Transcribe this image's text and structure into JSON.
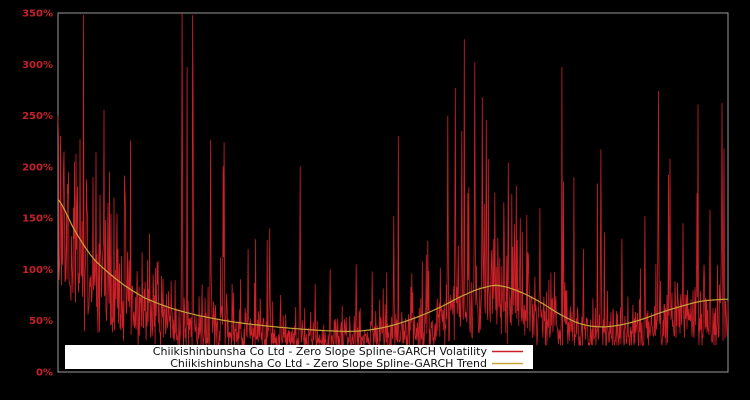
{
  "window": {
    "background": "#000000"
  },
  "chart_data": {
    "type": "line",
    "title": "",
    "grid": false,
    "background": "#000000",
    "frame_color": "#9a9a9a",
    "x_axis": {
      "label": "",
      "ticks": []
    },
    "y_axis": {
      "label": "",
      "unit": "%",
      "min": 0,
      "max": 350,
      "color": "#c6212a",
      "ticks": [
        {
          "label": "0%",
          "value": 0
        },
        {
          "label": "50%",
          "value": 50
        },
        {
          "label": "100%",
          "value": 100
        },
        {
          "label": "150%",
          "value": 150
        },
        {
          "label": "200%",
          "value": 200
        },
        {
          "label": "250%",
          "value": 250
        },
        {
          "label": "300%",
          "value": 300
        },
        {
          "label": "350%",
          "value": 350
        }
      ]
    },
    "legend": {
      "position": "bottom-center",
      "background": "#ffffff",
      "text_color": "#111111"
    },
    "series": [
      {
        "name": "Chiikishinbunsha Co Ltd - Zero Slope Spline-GARCH Volatility",
        "color": "#cc2128",
        "style": "spiky-line",
        "line_width": 0.8,
        "model": {
          "seed": 11,
          "n_points": 1340,
          "log_median": -0.28,
          "sigma": 0.36,
          "tail_threshold": 1.5,
          "tail_scale": 1.5,
          "floor_pct": 26,
          "cap_pct": 348
        },
        "major_spikes": [
          [
            0.0,
            250
          ],
          [
            0.004,
            230
          ],
          [
            0.009,
            215
          ],
          [
            0.025,
            205
          ],
          [
            0.052,
            190
          ],
          [
            0.075,
            165
          ],
          [
            0.101,
            152
          ],
          [
            0.137,
            135
          ],
          [
            0.185,
            350
          ],
          [
            0.228,
            226
          ],
          [
            0.248,
            224
          ],
          [
            0.284,
            120
          ],
          [
            0.316,
            140
          ],
          [
            0.361,
            110
          ],
          [
            0.406,
            100
          ],
          [
            0.445,
            105
          ],
          [
            0.469,
            98
          ],
          [
            0.501,
            152
          ],
          [
            0.528,
            96
          ],
          [
            0.552,
            128
          ],
          [
            0.582,
            250
          ],
          [
            0.593,
            277
          ],
          [
            0.603,
            235
          ],
          [
            0.613,
            180
          ],
          [
            0.622,
            302
          ],
          [
            0.633,
            268
          ],
          [
            0.639,
            246
          ],
          [
            0.652,
            175
          ],
          [
            0.672,
            204
          ],
          [
            0.69,
            150
          ],
          [
            0.719,
            160
          ],
          [
            0.754,
            186
          ],
          [
            0.784,
            120
          ],
          [
            0.81,
            217
          ],
          [
            0.842,
            130
          ],
          [
            0.876,
            152
          ],
          [
            0.896,
            274
          ],
          [
            0.913,
            208
          ],
          [
            0.933,
            145
          ],
          [
            0.954,
            174
          ],
          [
            0.973,
            158
          ],
          [
            0.991,
            262
          ],
          [
            0.994,
            218
          ]
        ]
      },
      {
        "name": "Chiikishinbunsha Co Ltd - Zero Slope Spline-GARCH Trend",
        "color": "#c9a43a",
        "style": "smooth-line",
        "line_width": 1.2,
        "points": [
          [
            0.0,
            168
          ],
          [
            0.025,
            138
          ],
          [
            0.05,
            113
          ],
          [
            0.075,
            97
          ],
          [
            0.1,
            84
          ],
          [
            0.13,
            72
          ],
          [
            0.17,
            62
          ],
          [
            0.21,
            55
          ],
          [
            0.26,
            49
          ],
          [
            0.31,
            45
          ],
          [
            0.36,
            42
          ],
          [
            0.41,
            40
          ],
          [
            0.45,
            40
          ],
          [
            0.49,
            44
          ],
          [
            0.53,
            52
          ],
          [
            0.57,
            63
          ],
          [
            0.61,
            76
          ],
          [
            0.64,
            83
          ],
          [
            0.66,
            84
          ],
          [
            0.69,
            78
          ],
          [
            0.72,
            68
          ],
          [
            0.75,
            56
          ],
          [
            0.78,
            47
          ],
          [
            0.81,
            44
          ],
          [
            0.84,
            46
          ],
          [
            0.87,
            51
          ],
          [
            0.9,
            58
          ],
          [
            0.93,
            64
          ],
          [
            0.96,
            69
          ],
          [
            1.0,
            71
          ]
        ]
      }
    ]
  }
}
